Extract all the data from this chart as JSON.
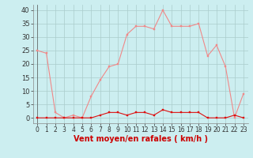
{
  "x": [
    0,
    1,
    2,
    3,
    4,
    5,
    6,
    7,
    8,
    9,
    10,
    11,
    12,
    13,
    14,
    15,
    16,
    17,
    18,
    19,
    20,
    21,
    22,
    23
  ],
  "rafales": [
    25,
    24,
    2,
    0,
    1,
    0,
    8,
    14,
    19,
    20,
    31,
    34,
    34,
    33,
    40,
    34,
    34,
    34,
    35,
    23,
    27,
    19,
    0,
    9
  ],
  "moyen": [
    0,
    0,
    0,
    0,
    0,
    0,
    0,
    1,
    2,
    2,
    1,
    2,
    2,
    1,
    3,
    2,
    2,
    2,
    2,
    0,
    0,
    0,
    1,
    0
  ],
  "bg_color": "#cceef0",
  "line_color_rafales": "#f08888",
  "line_color_moyen": "#dd1111",
  "grid_color": "#aacccc",
  "yticks": [
    0,
    5,
    10,
    15,
    20,
    25,
    30,
    35,
    40
  ],
  "xlabel": "Vent moyen/en rafales ( km/h )",
  "ylim": [
    -2,
    42
  ],
  "xlim": [
    -0.5,
    23.5
  ],
  "xlabel_color": "#cc0000",
  "xlabel_fontsize": 7,
  "tick_fontsize": 6,
  "marker_size": 2
}
